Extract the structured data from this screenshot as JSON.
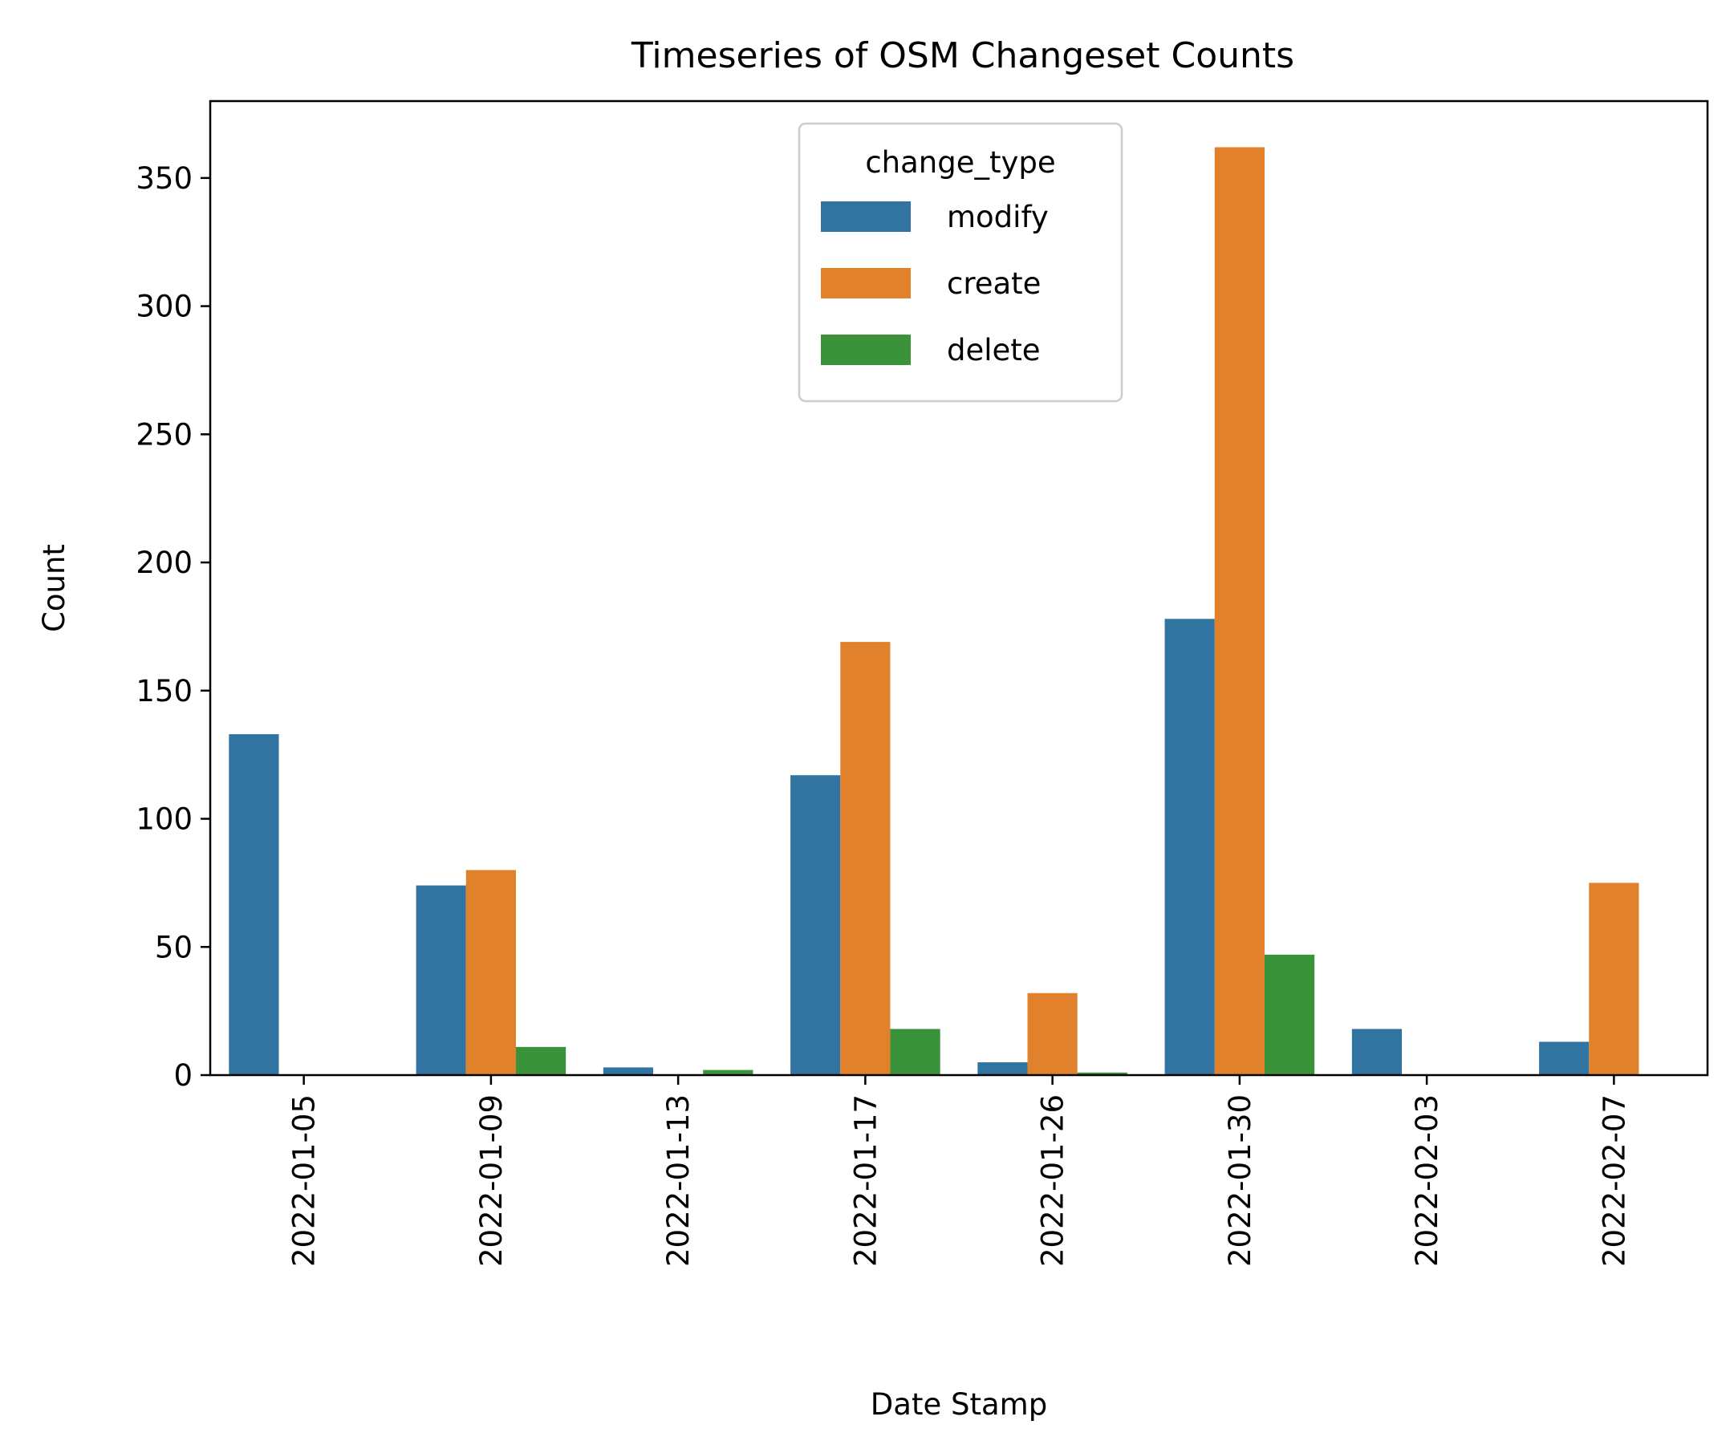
{
  "chart_data": {
    "type": "bar",
    "title": "Timeseries of OSM Changeset Counts",
    "xlabel": "Date Stamp",
    "ylabel": "Count",
    "categories": [
      "2022-01-05",
      "2022-01-09",
      "2022-01-13",
      "2022-01-17",
      "2022-01-26",
      "2022-01-30",
      "2022-02-03",
      "2022-02-07"
    ],
    "series": [
      {
        "name": "modify",
        "color": "#3274a1",
        "values": [
          133,
          74,
          3,
          117,
          5,
          178,
          18,
          13
        ]
      },
      {
        "name": "create",
        "color": "#e1812c",
        "values": [
          0,
          80,
          0,
          169,
          32,
          362,
          0,
          75
        ]
      },
      {
        "name": "delete",
        "color": "#3a923a",
        "values": [
          0,
          11,
          2,
          18,
          1,
          47,
          0,
          0
        ]
      }
    ],
    "ylim": [
      0,
      380
    ],
    "yticks": [
      0,
      50,
      100,
      150,
      200,
      250,
      300,
      350
    ],
    "grid": false,
    "x_tick_rotation": "vertical",
    "legend": {
      "title": "change_type",
      "placement": "upper-center"
    }
  }
}
